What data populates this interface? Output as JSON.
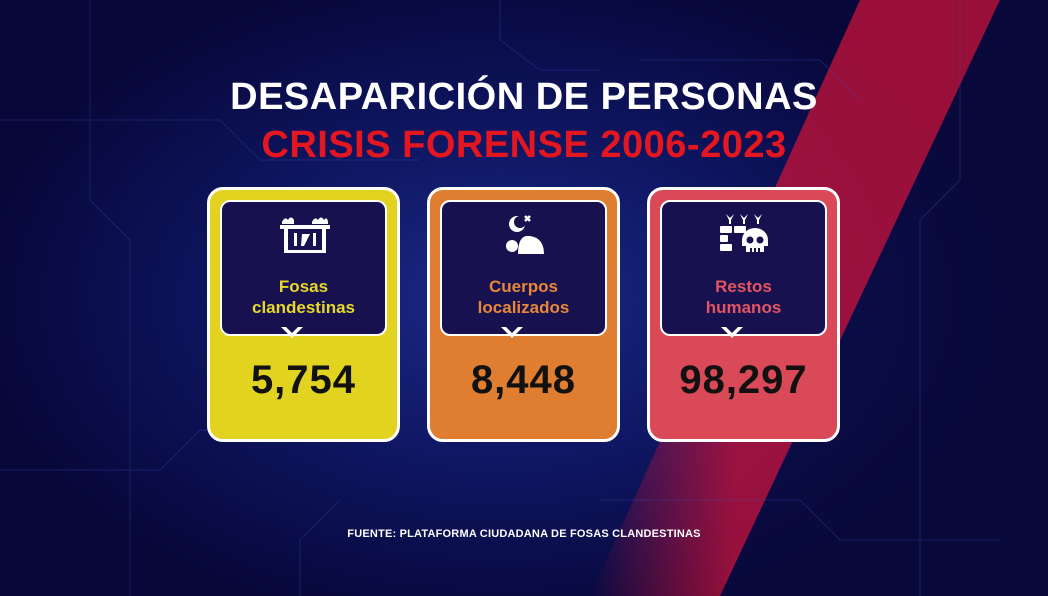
{
  "title_line_1": "DESAPARICIÓN DE PERSONAS",
  "title_line_2": "CRISIS FORENSE 2006-2023",
  "cards": [
    {
      "label_line_1": "Fosas",
      "label_line_2": "clandestinas",
      "value": "5,754",
      "icon": "grave-pit-icon",
      "color": "#e3d321"
    },
    {
      "label_line_1": "Cuerpos",
      "label_line_2": "localizados",
      "value": "8,448",
      "icon": "body-icon",
      "color": "#df7d30"
    },
    {
      "label_line_1": "Restos",
      "label_line_2": "humanos",
      "value": "98,297",
      "icon": "skull-remains-icon",
      "color": "#d94957"
    }
  ],
  "source": "FUENTE: PLATAFORMA CIUDADANA DE FOSAS CLANDESTINAS",
  "colors": {
    "background": "#07073a",
    "title_accent": "#e41620"
  }
}
